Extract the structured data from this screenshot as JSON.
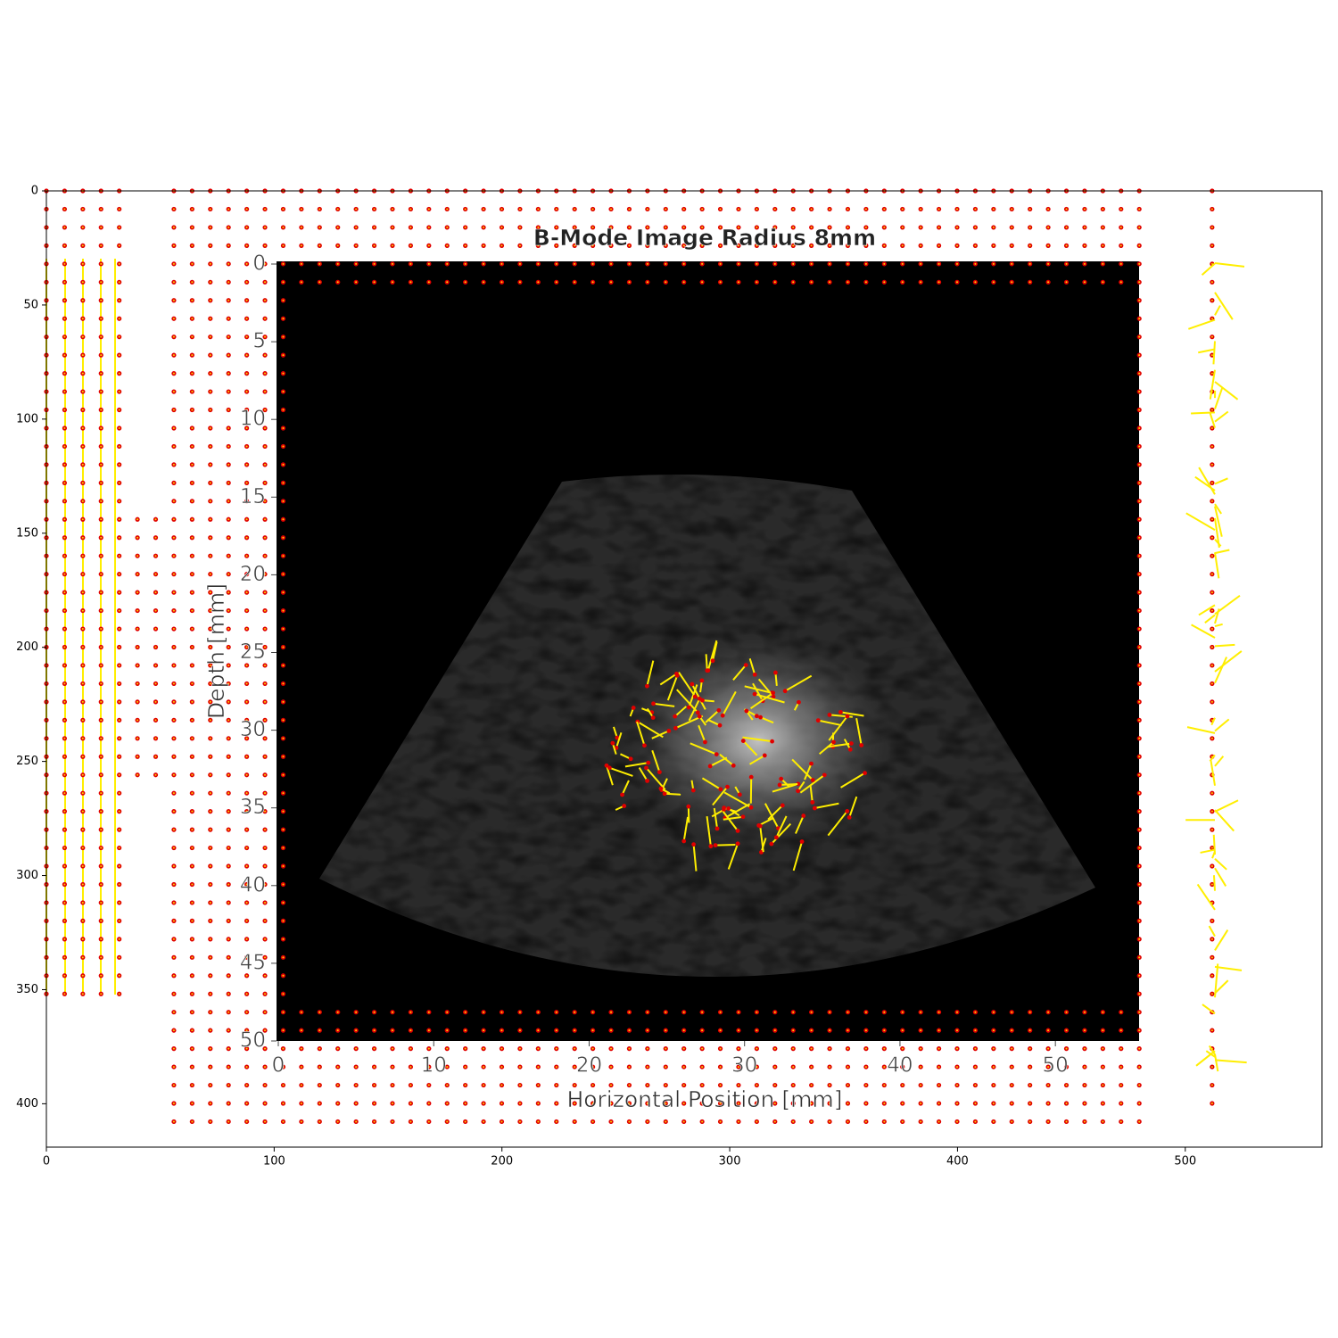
{
  "chart_data": [
    {
      "type": "image",
      "xlim": [
        0,
        560
      ],
      "ylim": [
        0,
        419
      ],
      "y_inverted": true,
      "xticks": [
        0,
        100,
        200,
        300,
        400,
        500
      ],
      "yticks": [
        0,
        50,
        100,
        150,
        200,
        250,
        300,
        350,
        400
      ]
    },
    {
      "type": "image",
      "title": "B-Mode Image Radius 8mm",
      "x_label": "Horizontal Position [mm]",
      "y_label": "Depth [mm]",
      "xlim": [
        0,
        55.5
      ],
      "ylim": [
        0,
        50
      ],
      "y_inverted": true,
      "xticks": [
        0,
        10,
        20,
        30,
        40,
        50
      ],
      "yticks": [
        0,
        5,
        10,
        15,
        20,
        25,
        30,
        35,
        40,
        45,
        50
      ]
    }
  ]
}
